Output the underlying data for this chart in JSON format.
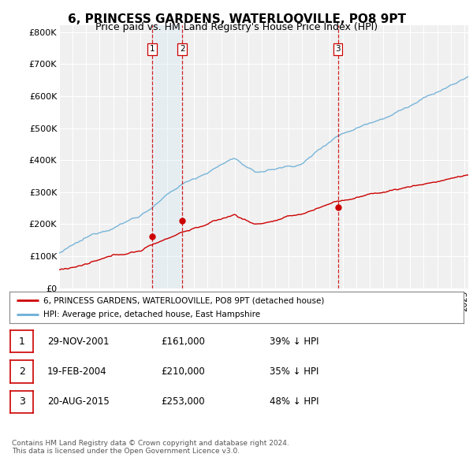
{
  "title": "6, PRINCESS GARDENS, WATERLOOVILLE, PO8 9PT",
  "subtitle": "Price paid vs. HM Land Registry's House Price Index (HPI)",
  "ylabel_ticks": [
    "£0",
    "£100K",
    "£200K",
    "£300K",
    "£400K",
    "£500K",
    "£600K",
    "£700K",
    "£800K"
  ],
  "ytick_values": [
    0,
    100000,
    200000,
    300000,
    400000,
    500000,
    600000,
    700000,
    800000
  ],
  "ylim": [
    0,
    820000
  ],
  "xlim_start": 1995.0,
  "xlim_end": 2025.3,
  "hpi_color": "#6baed6",
  "price_color": "#cc0000",
  "vline_color": "#cc0000",
  "shade_color": "#d6e8f5",
  "sale_dates": [
    2001.91,
    2004.13,
    2015.64
  ],
  "sale_labels": [
    "1",
    "2",
    "3"
  ],
  "sale_prices": [
    161000,
    210000,
    253000
  ],
  "legend_price_label": "6, PRINCESS GARDENS, WATERLOOVILLE, PO8 9PT (detached house)",
  "legend_hpi_label": "HPI: Average price, detached house, East Hampshire",
  "table_rows": [
    [
      "1",
      "29-NOV-2001",
      "£161,000",
      "39% ↓ HPI"
    ],
    [
      "2",
      "19-FEB-2004",
      "£210,000",
      "35% ↓ HPI"
    ],
    [
      "3",
      "20-AUG-2015",
      "£253,000",
      "48% ↓ HPI"
    ]
  ],
  "footnote": "Contains HM Land Registry data © Crown copyright and database right 2024.\nThis data is licensed under the Open Government Licence v3.0.",
  "bg_color": "#ffffff",
  "plot_bg_color": "#f0f0f0",
  "grid_color": "#ffffff",
  "title_fontsize": 11,
  "subtitle_fontsize": 9,
  "tick_fontsize": 8,
  "label_fontsize": 8
}
